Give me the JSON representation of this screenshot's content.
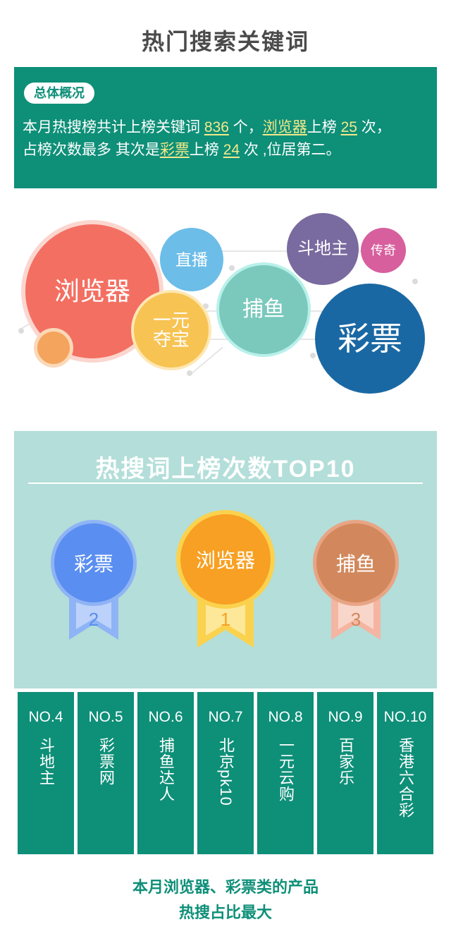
{
  "title": "热门搜索关键词",
  "summary": {
    "badge": "总体概况",
    "line1_a": "本月热搜榜共计上榜关键词 ",
    "total_count": "836",
    "line1_b": " 个，",
    "top_keyword": "浏览器",
    "line1_c": "上榜 ",
    "top_keyword_times": "25",
    "line1_d": " 次，",
    "line2_a": "占榜次数最多 其次是",
    "second_keyword": "彩票",
    "line2_b": "上榜 ",
    "second_keyword_times": "24",
    "line2_c": " 次 ,位居第二。"
  },
  "bubbles": {
    "browser": "浏览器",
    "live": "直播",
    "treasure_line1": "一元",
    "treasure_line2": "夺宝",
    "fishing": "捕鱼",
    "landlord": "斗地主",
    "legend": "传奇",
    "lottery": "彩票"
  },
  "top10": {
    "title": "热搜词上榜次数TOP10",
    "medals": [
      {
        "name": "彩票",
        "rank": "2",
        "color": "#5a8ef0",
        "ring": "#8fb4f5",
        "ribbon": "#8fb4f5"
      },
      {
        "name": "浏览器",
        "rank": "1",
        "color": "#f7a023",
        "ring": "#fbd24e",
        "ribbon": "#fbd24e"
      },
      {
        "name": "捕鱼",
        "rank": "3",
        "color": "#d2885c",
        "ring": "#e8a585",
        "ribbon": "#f4b5a2"
      }
    ],
    "ranks": [
      {
        "no": "NO.4",
        "name": "斗地主"
      },
      {
        "no": "NO.5",
        "name": "彩票网"
      },
      {
        "no": "NO.6",
        "name": "捕鱼达人"
      },
      {
        "no": "NO.7",
        "name": "北京pk10"
      },
      {
        "no": "NO.8",
        "name": "一元云购"
      },
      {
        "no": "NO.9",
        "name": "百家乐"
      },
      {
        "no": "NO.10",
        "name": "香港六合彩"
      }
    ]
  },
  "footer": {
    "line1": "本月浏览器、彩票类的产品",
    "line2": "热搜占比最大"
  }
}
